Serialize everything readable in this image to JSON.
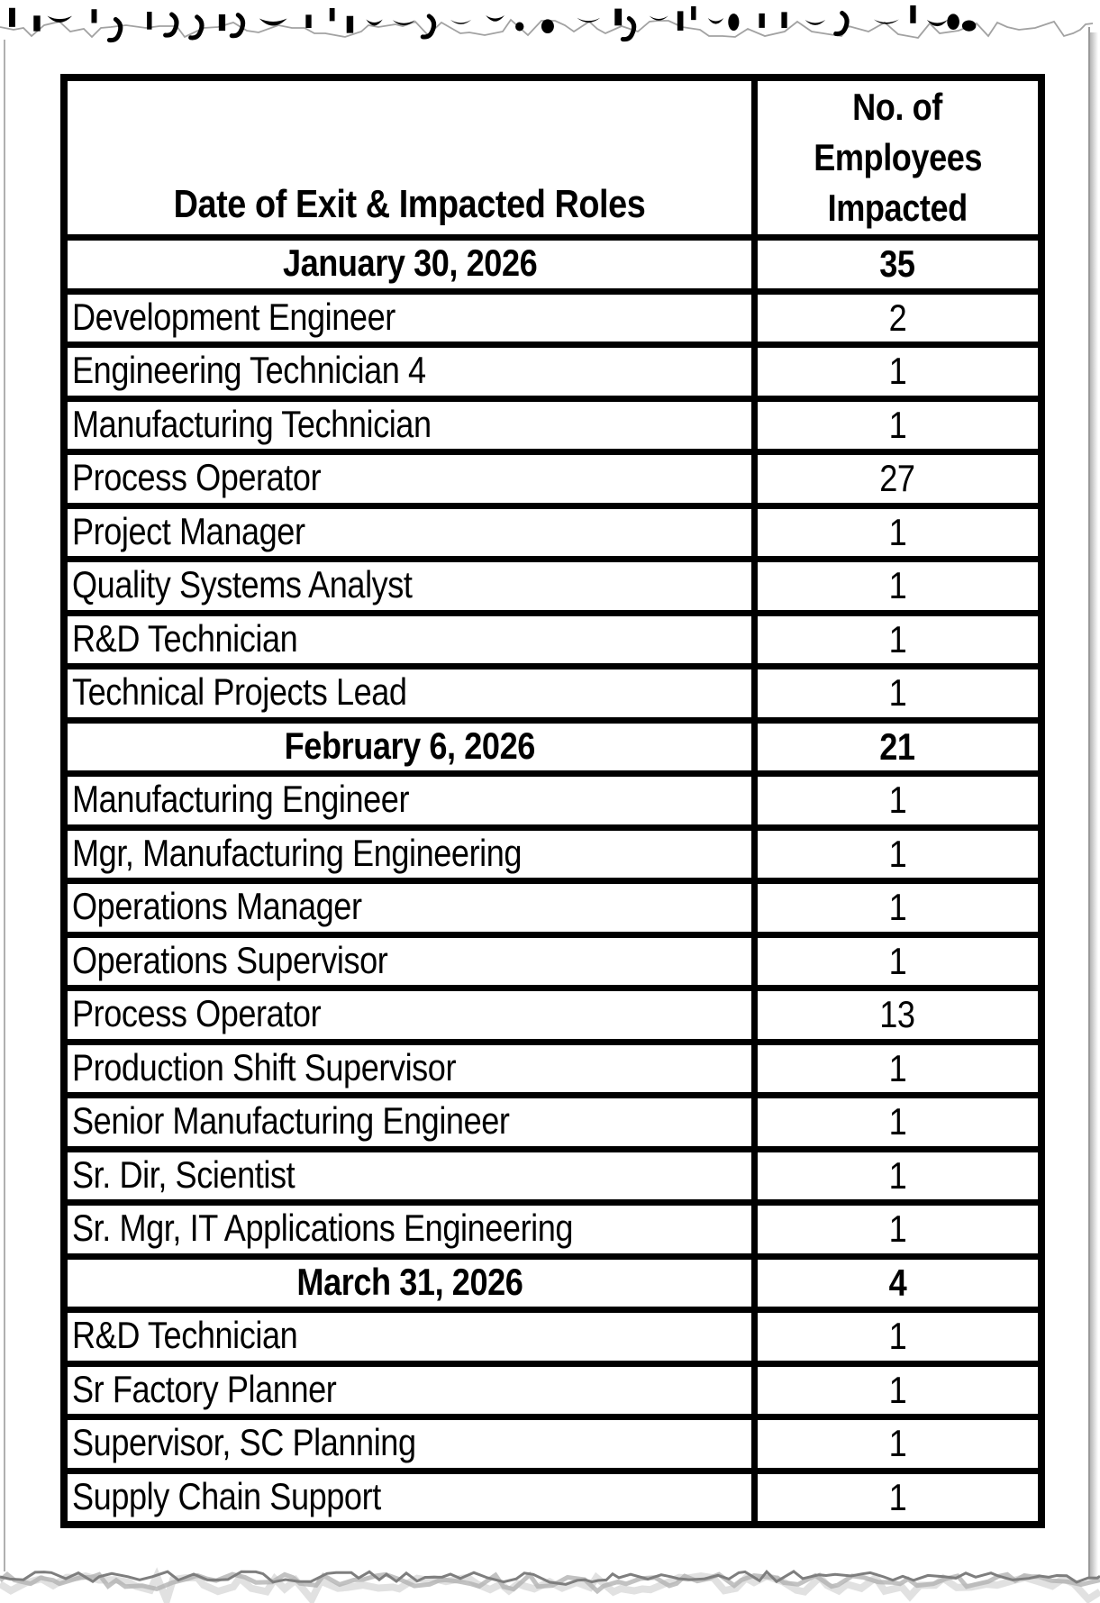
{
  "document": {
    "colors": {
      "text": "#000000",
      "background": "#ffffff",
      "table_border": "#000000",
      "torn_edge_gray": "#9b9b9b"
    },
    "table": {
      "header": {
        "roles_col": "Date of Exit & Impacted Roles",
        "count_col": "No. of Employees Impacted",
        "count_col_lines": [
          "No. of",
          "Employees",
          "Impacted"
        ]
      },
      "sections": [
        {
          "date": "January 30, 2026",
          "total": "35",
          "roles": [
            {
              "role": "Development Engineer",
              "count": "2"
            },
            {
              "role": "Engineering Technician 4",
              "count": "1"
            },
            {
              "role": "Manufacturing Technician",
              "count": "1"
            },
            {
              "role": "Process Operator",
              "count": "27"
            },
            {
              "role": "Project Manager",
              "count": "1"
            },
            {
              "role": "Quality Systems Analyst",
              "count": "1"
            },
            {
              "role": "R&D Technician",
              "count": "1"
            },
            {
              "role": "Technical Projects Lead",
              "count": "1"
            }
          ]
        },
        {
          "date": "February 6, 2026",
          "total": "21",
          "roles": [
            {
              "role": "Manufacturing Engineer",
              "count": "1"
            },
            {
              "role": "Mgr, Manufacturing Engineering",
              "count": "1"
            },
            {
              "role": "Operations Manager",
              "count": "1"
            },
            {
              "role": "Operations Supervisor",
              "count": "1"
            },
            {
              "role": "Process Operator",
              "count": "13"
            },
            {
              "role": "Production Shift Supervisor",
              "count": "1"
            },
            {
              "role": "Senior Manufacturing Engineer",
              "count": "1"
            },
            {
              "role": "Sr. Dir, Scientist",
              "count": "1"
            },
            {
              "role": "Sr. Mgr, IT Applications Engineering",
              "count": "1"
            }
          ]
        },
        {
          "date": "March 31, 2026",
          "total": "4",
          "roles": [
            {
              "role": "R&D Technician",
              "count": "1"
            },
            {
              "role": "Sr Factory Planner",
              "count": "1"
            },
            {
              "role": "Supervisor, SC Planning",
              "count": "1"
            },
            {
              "role": "Supply Chain Support",
              "count": "1"
            }
          ]
        }
      ]
    }
  }
}
